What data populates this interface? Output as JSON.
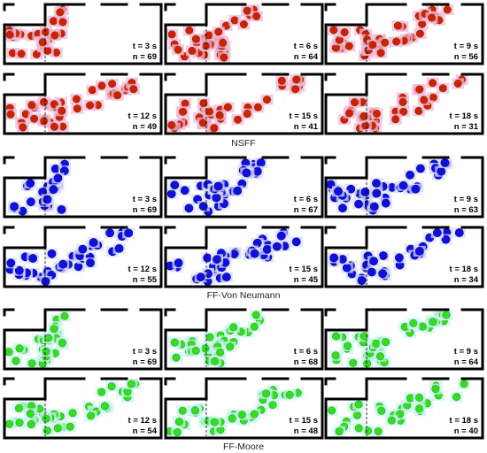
{
  "groups": [
    {
      "caption": "NSFF",
      "colors": {
        "agent": "#cc2200",
        "agent_edge": "#9a2a00",
        "halo": "#f0b8d8"
      },
      "panels": [
        {
          "time": "t = 3 s",
          "count": "n = 69"
        },
        {
          "time": "t = 6 s",
          "count": "n = 64"
        },
        {
          "time": "t = 9 s",
          "count": "n = 56"
        },
        {
          "time": "t = 12 s",
          "count": "n = 49"
        },
        {
          "time": "t = 15 s",
          "count": "n = 41"
        },
        {
          "time": "t = 18 s",
          "count": "n = 31"
        }
      ]
    },
    {
      "caption": "FF-Von Neumann",
      "colors": {
        "agent": "#1010dd",
        "agent_edge": "#000099",
        "halo": "#d8dcff"
      },
      "panels": [
        {
          "time": "t = 3 s",
          "count": "n = 69"
        },
        {
          "time": "t = 6 s",
          "count": "n = 67"
        },
        {
          "time": "t = 9 s",
          "count": "n = 63"
        },
        {
          "time": "t = 12 s",
          "count": "n = 55"
        },
        {
          "time": "t = 15 s",
          "count": "n = 45"
        },
        {
          "time": "t = 18 s",
          "count": "n = 34"
        }
      ]
    },
    {
      "caption": "FF-Moore",
      "colors": {
        "agent": "#33dd22",
        "agent_edge": "#22aa11",
        "halo": "#c8f4ee"
      },
      "panels": [
        {
          "time": "t = 3 s",
          "count": "n = 69"
        },
        {
          "time": "t = 6 s",
          "count": "n = 68"
        },
        {
          "time": "t = 9 s",
          "count": "n = 64"
        },
        {
          "time": "t = 12 s",
          "count": "n = 54"
        },
        {
          "time": "t = 15 s",
          "count": "n = 48"
        },
        {
          "time": "t = 18 s",
          "count": "n = 40"
        }
      ]
    }
  ]
}
